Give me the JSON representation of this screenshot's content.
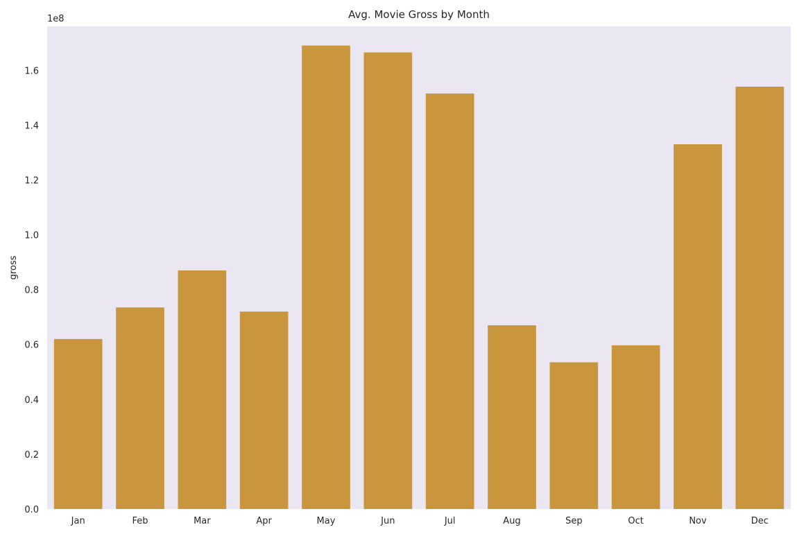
{
  "chart_data": {
    "type": "bar",
    "title": "Avg. Movie Gross by Month",
    "xlabel": "",
    "ylabel": "gross",
    "y_offset_label": "1e8",
    "categories": [
      "Jan",
      "Feb",
      "Mar",
      "Apr",
      "May",
      "Jun",
      "Jul",
      "Aug",
      "Sep",
      "Oct",
      "Nov",
      "Dec"
    ],
    "values": [
      62000000,
      73500000,
      87000000,
      72000000,
      169000000,
      166500000,
      151500000,
      67000000,
      53500000,
      59700000,
      133000000,
      154000000
    ],
    "ylim": [
      0,
      176000000
    ],
    "yticks": [
      0,
      20000000,
      40000000,
      60000000,
      80000000,
      100000000,
      120000000,
      140000000,
      160000000
    ],
    "ytick_labels": [
      "0.0",
      "0.2",
      "0.4",
      "0.6",
      "0.8",
      "1.0",
      "1.2",
      "1.4",
      "1.6"
    ],
    "grid": false,
    "colors": {
      "bar": "#C9963E",
      "plot_background": "#EAE6F2"
    }
  }
}
